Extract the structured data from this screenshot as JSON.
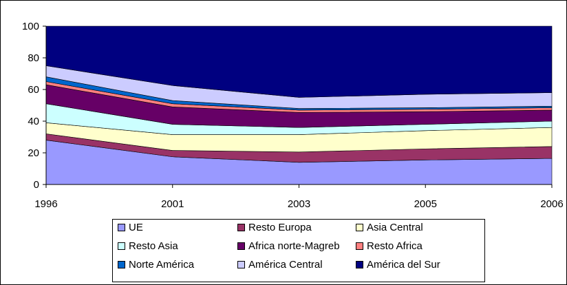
{
  "chart_data": {
    "type": "area",
    "stacked": true,
    "categories": [
      "1996",
      "2001",
      "2003",
      "2005",
      "2006"
    ],
    "ylim": [
      0,
      100
    ],
    "yticks": [
      "0",
      "20",
      "40",
      "60",
      "80",
      "100"
    ],
    "grid": false,
    "legend_position": "bottom",
    "series": [
      {
        "name": "UE",
        "color": "#9999FF",
        "values": [
          28,
          17.5,
          14,
          15.5,
          16.5
        ]
      },
      {
        "name": "Resto Europa",
        "color": "#993366",
        "values": [
          4,
          4,
          6.5,
          7,
          7.5
        ]
      },
      {
        "name": "Asia Central",
        "color": "#FFFFCC",
        "values": [
          7,
          10,
          11,
          11.5,
          12
        ]
      },
      {
        "name": "Resto Asia",
        "color": "#CCFFFF",
        "values": [
          12,
          6.5,
          4.5,
          4,
          4
        ]
      },
      {
        "name": "Africa norte-Magreb",
        "color": "#660066",
        "values": [
          12,
          11,
          9.5,
          8,
          7
        ]
      },
      {
        "name": "Resto Africa",
        "color": "#FF8080",
        "values": [
          2,
          2,
          1.5,
          1.5,
          1.5
        ]
      },
      {
        "name": "Norte América",
        "color": "#0066CC",
        "values": [
          3,
          2,
          1,
          1,
          1
        ]
      },
      {
        "name": "América Central",
        "color": "#CCCCFF",
        "values": [
          7,
          9.5,
          7,
          8.5,
          8.5
        ]
      },
      {
        "name": "América del Sur",
        "color": "#000080",
        "values": [
          25,
          37.5,
          45,
          43,
          42
        ]
      }
    ]
  }
}
